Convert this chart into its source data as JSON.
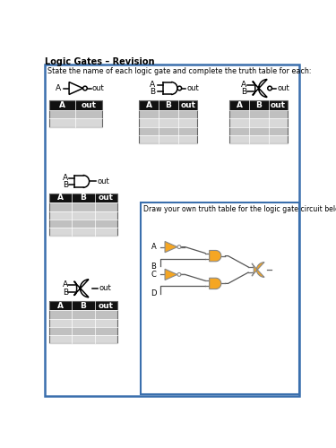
{
  "title": "Logic Gates – Revision",
  "instruction1": "State the name of each logic gate and complete the truth table for each:",
  "instruction2": "Draw your own truth table for the logic gate circuit below:",
  "bg_color": "#ffffff",
  "box_border_color": "#3a6fad",
  "header_bg": "#111111",
  "header_fg": "#ffffff",
  "row_colors_2": [
    "#c0c0c0",
    "#d8d8d8"
  ],
  "table1_headers": [
    "A",
    "out"
  ],
  "table2_headers": [
    "A",
    "B",
    "out"
  ],
  "table3_headers": [
    "A",
    "B",
    "out"
  ],
  "table4_headers": [
    "A",
    "B",
    "out"
  ],
  "table5_headers": [
    "A",
    "B",
    "out"
  ],
  "gate_orange": "#F5A623",
  "wire_color": "#555555"
}
